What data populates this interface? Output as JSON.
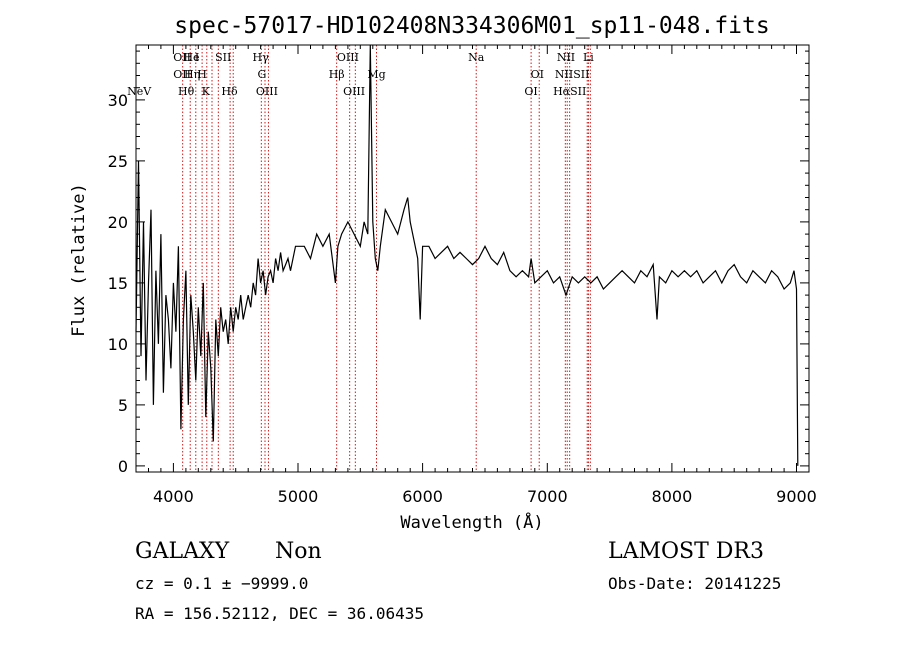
{
  "chart_data": {
    "type": "line",
    "title": "spec-57017-HD102408N334306M01_sp11-048.fits",
    "xlabel": "Wavelength (Å)",
    "ylabel": "Flux (relative)",
    "xlim": [
      3700,
      9100
    ],
    "ylim": [
      -0.5,
      34.5
    ],
    "x_ticks": [
      4000,
      5000,
      6000,
      7000,
      8000,
      9000
    ],
    "y_ticks": [
      0,
      5,
      10,
      15,
      20,
      25,
      30
    ],
    "grid": false,
    "series": [
      {
        "x": [
          3700,
          3720,
          3740,
          3760,
          3780,
          3800,
          3820,
          3840,
          3860,
          3880,
          3900,
          3920,
          3940,
          3960,
          3980,
          4000,
          4020,
          4040,
          4060,
          4080,
          4100,
          4120,
          4140,
          4160,
          4180,
          4200,
          4220,
          4240,
          4260,
          4280,
          4300,
          4320,
          4340,
          4360,
          4380,
          4400,
          4420,
          4440,
          4460,
          4480,
          4500,
          4520,
          4540,
          4560,
          4580,
          4600,
          4620,
          4640,
          4660,
          4680,
          4700,
          4720,
          4740,
          4760,
          4780,
          4800,
          4820,
          4840,
          4860,
          4880,
          4900,
          4920,
          4940,
          4960,
          4980,
          5000,
          5050,
          5100,
          5150,
          5200,
          5250,
          5300,
          5320,
          5350,
          5400,
          5450,
          5500,
          5530,
          5560,
          5580,
          5600,
          5620,
          5640,
          5660,
          5700,
          5750,
          5800,
          5850,
          5880,
          5900,
          5920,
          5940,
          5960,
          5980,
          6000,
          6050,
          6100,
          6150,
          6200,
          6250,
          6300,
          6350,
          6400,
          6450,
          6500,
          6550,
          6600,
          6650,
          6700,
          6750,
          6800,
          6850,
          6870,
          6900,
          6950,
          7000,
          7050,
          7100,
          7150,
          7200,
          7250,
          7300,
          7350,
          7400,
          7450,
          7500,
          7550,
          7600,
          7650,
          7700,
          7750,
          7800,
          7850,
          7880,
          7900,
          7950,
          8000,
          8050,
          8100,
          8150,
          8200,
          8250,
          8300,
          8350,
          8400,
          8450,
          8500,
          8550,
          8600,
          8650,
          8700,
          8750,
          8800,
          8850,
          8900,
          8950,
          8980,
          9000,
          9010
        ],
        "y": [
          11,
          25,
          9,
          20,
          7,
          15,
          21,
          5,
          16,
          10,
          19,
          6,
          14,
          12,
          8,
          15,
          11,
          18,
          3,
          12,
          16,
          5,
          14,
          11,
          7,
          13,
          9,
          15,
          4,
          11,
          8,
          2,
          12,
          9,
          13,
          11,
          12,
          10,
          13,
          11,
          13,
          12,
          14,
          12,
          13,
          14,
          13,
          15,
          14,
          17,
          15,
          16,
          14,
          15.5,
          16,
          15,
          17,
          16,
          17.5,
          16,
          16.5,
          17,
          16,
          17,
          18,
          18,
          18,
          17,
          19,
          18,
          19,
          15,
          18,
          19,
          20,
          19,
          18,
          20,
          19,
          35,
          20,
          17,
          16,
          18,
          21,
          20,
          19,
          21,
          22,
          20,
          19,
          18,
          17,
          12,
          18,
          18,
          17,
          17.5,
          18,
          17,
          17.5,
          17,
          16.5,
          17,
          18,
          17,
          16.5,
          17.5,
          16,
          15.5,
          16,
          15.5,
          17,
          15,
          15.5,
          16,
          15,
          15.5,
          14,
          15.5,
          15,
          15.5,
          15,
          15.5,
          14.5,
          15,
          15.5,
          16,
          15.5,
          15,
          16,
          15.5,
          16.5,
          12,
          15.5,
          15,
          16,
          15.5,
          16,
          15.5,
          16,
          15,
          15.5,
          16,
          15,
          16,
          16.5,
          15.5,
          15,
          16,
          15.5,
          15,
          16,
          15.5,
          14.5,
          15,
          16,
          14.5,
          0
        ]
      }
    ],
    "lines": [
      {
        "label": "NeV",
        "wavelength": 3726,
        "row": 3
      },
      {
        "label": "OII",
        "wavelength": 4070,
        "row": 1
      },
      {
        "label": "OII",
        "wavelength": 4070,
        "row": 2
      },
      {
        "label": "Hθ",
        "wavelength": 4102,
        "row": 3
      },
      {
        "label": "He",
        "wavelength": 4145,
        "row": 1
      },
      {
        "label": "Hη",
        "wavelength": 4150,
        "row": 2
      },
      {
        "label": "I",
        "wavelength": 4190,
        "row": 1
      },
      {
        "label": "H",
        "wavelength": 4230,
        "row": 2
      },
      {
        "label": "K",
        "wavelength": 4260,
        "row": 3
      },
      {
        "label": "SII",
        "wavelength": 4400,
        "row": 1
      },
      {
        "label": "Hδ",
        "wavelength": 4450,
        "row": 3
      },
      {
        "label": "Hγ",
        "wavelength": 4700,
        "row": 1
      },
      {
        "label": "G",
        "wavelength": 4710,
        "row": 2
      },
      {
        "label": "OIII",
        "wavelength": 4750,
        "row": 3
      },
      {
        "label": "OIII",
        "wavelength": 5400,
        "row": 1
      },
      {
        "label": "Hβ",
        "wavelength": 5310,
        "row": 2
      },
      {
        "label": "OIII",
        "wavelength": 5450,
        "row": 3
      },
      {
        "label": "Mg",
        "wavelength": 5630,
        "row": 2
      },
      {
        "label": "Na",
        "wavelength": 6430,
        "row": 1
      },
      {
        "label": "OI",
        "wavelength": 6920,
        "row": 2
      },
      {
        "label": "OI",
        "wavelength": 6870,
        "row": 3
      },
      {
        "label": "NII",
        "wavelength": 7150,
        "row": 1
      },
      {
        "label": "NIISII",
        "wavelength": 7200,
        "row": 2
      },
      {
        "label": "HαSII",
        "wavelength": 7180,
        "row": 3
      },
      {
        "label": "Li",
        "wavelength": 7330,
        "row": 1
      }
    ],
    "line_positions": [
      4075,
      4135,
      4180,
      4230,
      4268,
      4310,
      4360,
      4455,
      4480,
      4705,
      4735,
      4762,
      5310,
      5415,
      5460,
      5630,
      6430,
      6870,
      6935,
      7145,
      7160,
      7180,
      7320,
      7330,
      7345
    ]
  },
  "info": {
    "object_class": "GALAXY",
    "subclass": "Non",
    "survey": "LAMOST DR3",
    "cz": "cz = 0.1 ± −9999.0",
    "obs_date": "Obs-Date: 20141225",
    "coords": "RA = 156.52112, DEC =  36.06435"
  },
  "colors": {
    "spectrum": "#000000",
    "line_markers": "#cc0000",
    "axes": "#000000",
    "background": "#ffffff"
  }
}
